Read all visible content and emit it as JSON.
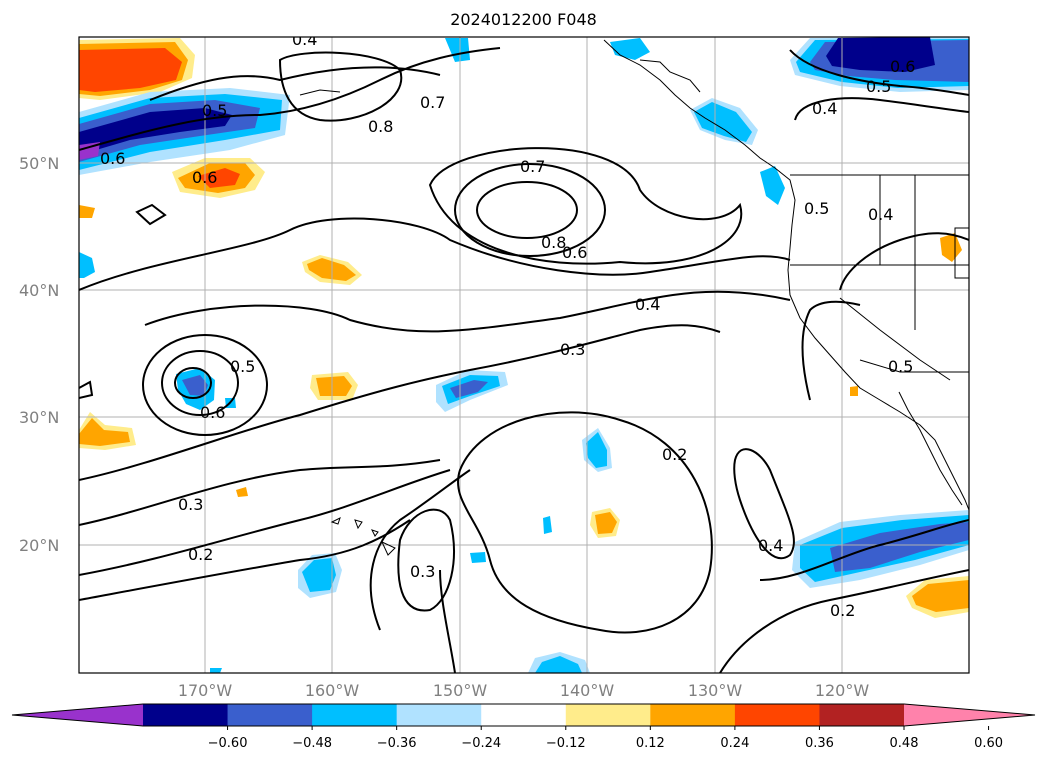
{
  "title": "2024012200 F048",
  "map": {
    "lat_labels": [
      "50°N",
      "40°N",
      "30°N",
      "20°N"
    ],
    "lon_labels": [
      "170°W",
      "160°W",
      "150°W",
      "140°W",
      "130°W",
      "120°W"
    ]
  },
  "contour_labels": [
    "0.4",
    "0.5",
    "0.6",
    "0.6",
    "0.8",
    "0.7",
    "0.7",
    "0.8",
    "0.6",
    "0.4",
    "0.3",
    "0.5",
    "0.6",
    "0.3",
    "0.2",
    "0.3",
    "0.2",
    "0.4",
    "0.2",
    "0.6",
    "0.5",
    "0.4",
    "0.5",
    "0.4",
    "0.5"
  ],
  "colorbar": {
    "ticks": [
      "−0.60",
      "−0.48",
      "−0.36",
      "−0.24",
      "−0.12",
      "0.12",
      "0.24",
      "0.36",
      "0.48",
      "0.60"
    ],
    "colors": [
      "#9932cc",
      "#00008b",
      "#3a5fcd",
      "#00bfff",
      "#b0e2ff",
      "#ffffff",
      "#ffec8b",
      "#ffa500",
      "#ff4500",
      "#b22222",
      "#ff82ab"
    ]
  }
}
